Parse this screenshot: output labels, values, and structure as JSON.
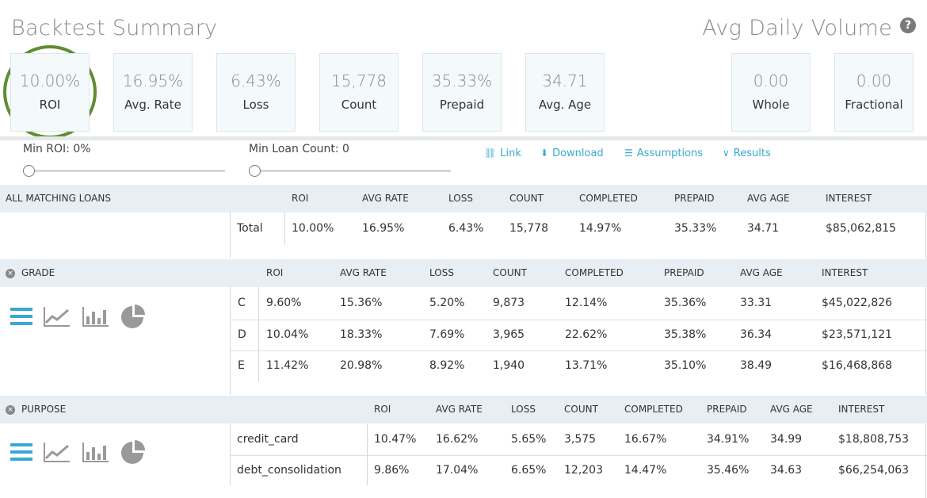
{
  "backtest_title": "Backtest Summary",
  "volume_title": "Avg Daily Volume",
  "help_glyph": "?",
  "summary_cards": [
    {
      "value": "10.00%",
      "label": "ROI"
    },
    {
      "value": "16.95%",
      "label": "Avg. Rate"
    },
    {
      "value": "6.43%",
      "label": "Loss"
    },
    {
      "value": "15,778",
      "label": "Count"
    },
    {
      "value": "35.33%",
      "label": "Prepaid"
    },
    {
      "value": "34.71",
      "label": "Avg. Age"
    }
  ],
  "volume_cards": [
    {
      "value": "0.00",
      "label": "Whole"
    },
    {
      "value": "0.00",
      "label": "Fractional"
    }
  ],
  "filters": {
    "min_roi_label": "Min ROI: 0%",
    "min_roi_value": 0,
    "min_loan_count_label": "Min Loan Count: 0",
    "min_loan_count_value": 0
  },
  "actions": [
    {
      "label": "Link",
      "icon": "link-icon"
    },
    {
      "label": "Download",
      "icon": "download-icon"
    },
    {
      "label": "Assumptions",
      "icon": "sliders-icon"
    },
    {
      "label": "Results",
      "icon": "chevron-down-icon"
    }
  ],
  "columns": [
    "ROI",
    "AVG RATE",
    "LOSS",
    "COUNT",
    "COMPLETED",
    "PREPAID",
    "AVG AGE",
    "INTEREST"
  ],
  "all_matching": {
    "title": "ALL MATCHING LOANS",
    "row": {
      "label": "Total",
      "values": [
        "10.00%",
        "16.95%",
        "6.43%",
        "15,778",
        "14.97%",
        "35.33%",
        "34.71",
        "$85,062,815"
      ]
    }
  },
  "grade": {
    "title": "GRADE",
    "rows": [
      {
        "label": "C",
        "values": [
          "9.60%",
          "15.36%",
          "5.20%",
          "9,873",
          "12.14%",
          "35.36%",
          "33.31",
          "$45,022,826"
        ]
      },
      {
        "label": "D",
        "values": [
          "10.04%",
          "18.33%",
          "7.69%",
          "3,965",
          "22.62%",
          "35.38%",
          "36.34",
          "$23,571,121"
        ]
      },
      {
        "label": "E",
        "values": [
          "11.42%",
          "20.98%",
          "8.92%",
          "1,940",
          "13.71%",
          "35.10%",
          "38.49",
          "$16,468,868"
        ]
      }
    ]
  },
  "purpose": {
    "title": "PURPOSE",
    "rows": [
      {
        "label": "credit_card",
        "values": [
          "10.47%",
          "16.62%",
          "5.65%",
          "3,575",
          "16.67%",
          "34.91%",
          "34.99",
          "$18,808,753"
        ]
      },
      {
        "label": "debt_consolidation",
        "values": [
          "9.86%",
          "17.04%",
          "6.65%",
          "12,203",
          "14.47%",
          "35.46%",
          "34.63",
          "$66,254,063"
        ]
      }
    ]
  },
  "colors": {
    "accent": "#3aa8d0",
    "highlight_ring": "#5f8d32",
    "band": "#e7eef4"
  }
}
